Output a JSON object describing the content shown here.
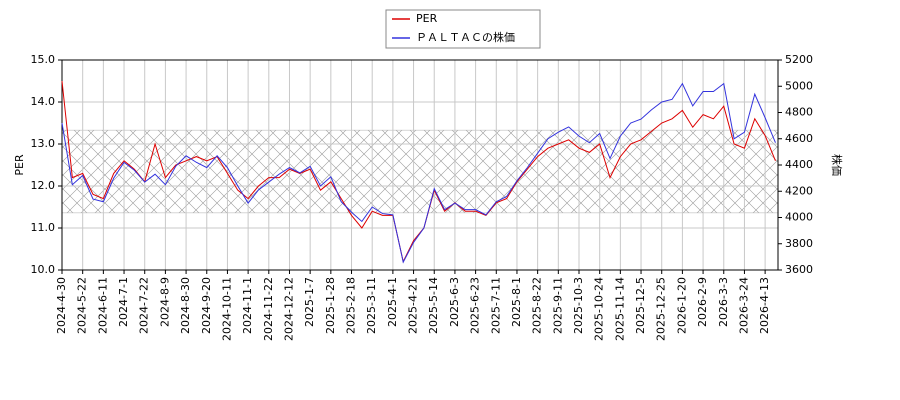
{
  "chart_data": {
    "type": "line",
    "categories": [
      "2024-4-30",
      null,
      "2024-5-22",
      null,
      "2024-6-11",
      null,
      "2024-7-1",
      null,
      "2024-7-22",
      null,
      "2024-8-9",
      null,
      "2024-8-30",
      null,
      "2024-9-20",
      null,
      "2024-10-11",
      null,
      "2024-11-1",
      null,
      "2024-11-22",
      null,
      "2024-12-12",
      null,
      "2025-1-7",
      null,
      "2025-1-28",
      null,
      "2025-2-18",
      null,
      "2025-3-11",
      null,
      "2025-4-1",
      null,
      "2025-4-21",
      null,
      "2025-5-14",
      null,
      "2025-6-3",
      null,
      "2025-6-23",
      null,
      "2025-7-11",
      null,
      "2025-8-1",
      null,
      "2025-8-22",
      null,
      "2025-9-11",
      null,
      "2025-10-3",
      null,
      "2025-10-24",
      null,
      "2025-11-14",
      null,
      "2025-12-5",
      null,
      "2025-12-25",
      null,
      "2026-1-20",
      null,
      "2026-2-9",
      null,
      "2026-3-3",
      null,
      "2026-3-24",
      null,
      "2026-4-13",
      null
    ],
    "series": [
      {
        "name": "PER",
        "color": "#dd0000",
        "values": [
          14.5,
          12.2,
          12.3,
          11.8,
          11.7,
          12.3,
          12.6,
          12.4,
          12.1,
          13.0,
          12.2,
          12.5,
          12.6,
          12.7,
          12.6,
          12.7,
          12.3,
          11.9,
          11.7,
          12.0,
          12.2,
          12.2,
          12.4,
          12.3,
          12.4,
          11.9,
          12.1,
          11.7,
          11.3,
          11.0,
          11.4,
          11.3,
          11.3,
          10.2,
          10.7,
          11.0,
          11.9,
          11.4,
          11.6,
          11.4,
          11.4,
          11.3,
          11.6,
          11.7,
          12.1,
          12.4,
          12.7,
          12.9,
          13.0,
          13.1,
          12.9,
          12.8,
          13.0,
          12.2,
          12.7,
          13.0,
          13.1,
          13.3,
          13.5,
          13.6,
          13.8,
          13.4,
          13.7,
          13.6,
          13.9,
          13.0,
          12.9,
          13.6,
          13.2,
          12.6
        ]
      },
      {
        "name": "ＰＡＬＴＡＣの株価",
        "color": "#3333dd",
        "axis": "y2",
        "values": [
          4720,
          4250,
          4320,
          4140,
          4120,
          4300,
          4420,
          4360,
          4270,
          4330,
          4250,
          4390,
          4470,
          4420,
          4380,
          4470,
          4380,
          4240,
          4110,
          4210,
          4270,
          4330,
          4380,
          4340,
          4390,
          4240,
          4310,
          4120,
          4040,
          3970,
          4080,
          4030,
          4020,
          3660,
          3810,
          3920,
          4220,
          4060,
          4110,
          4060,
          4060,
          4020,
          4120,
          4160,
          4280,
          4380,
          4490,
          4600,
          4650,
          4690,
          4620,
          4570,
          4640,
          4450,
          4620,
          4720,
          4750,
          4820,
          4880,
          4900,
          5020,
          4850,
          4960,
          4960,
          5020,
          4600,
          4650,
          4940,
          4760,
          4570
        ]
      }
    ],
    "band": [
      11.36,
      13.33
    ],
    "ylabel": "PER",
    "y2label": "株価",
    "ylim": [
      10,
      15
    ],
    "yticks": [
      {
        "value": 10,
        "label": "10.0"
      },
      {
        "value": 11,
        "label": "11.0"
      },
      {
        "value": 12,
        "label": "12.0"
      },
      {
        "value": 13,
        "label": "13.0"
      },
      {
        "value": 14,
        "label": "14.0"
      },
      {
        "value": 15,
        "label": "15.0"
      }
    ],
    "y2lim": [
      3600,
      5200
    ],
    "y2ticks": [
      3600,
      3800,
      4000,
      4200,
      4400,
      4600,
      4800,
      5000,
      5200
    ],
    "grid": true
  }
}
